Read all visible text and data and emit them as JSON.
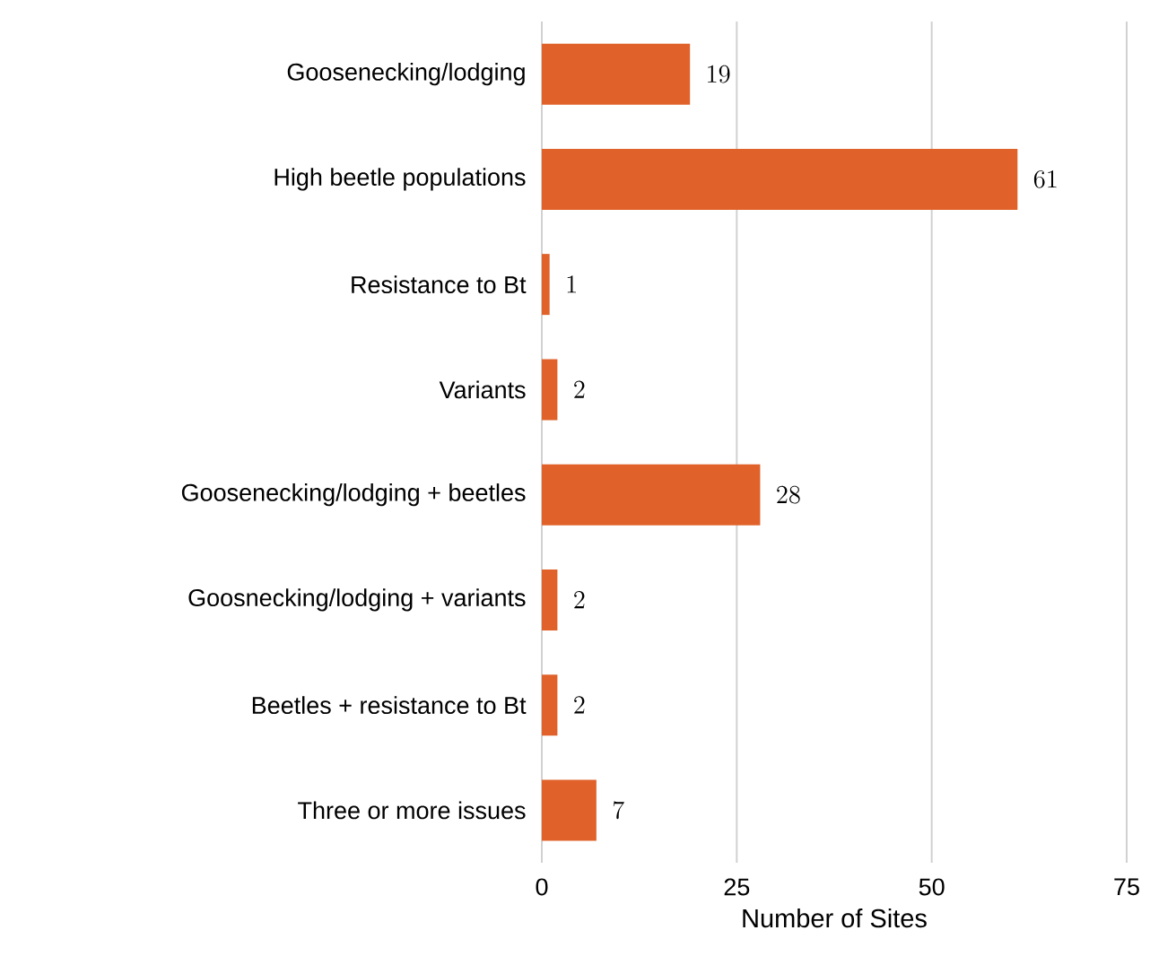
{
  "chart_data": {
    "type": "bar",
    "orientation": "horizontal",
    "xlabel": "Number of Sites",
    "categories": [
      "Goosenecking/lodging",
      "High beetle populations",
      "Resistance to Bt",
      "Variants",
      "Goosenecking/lodging + beetles",
      "Goosnecking/lodging + variants",
      "Beetles + resistance to Bt",
      "Three or more issues"
    ],
    "values": [
      19,
      61,
      1,
      2,
      28,
      2,
      2,
      7
    ],
    "color": "#e0622a",
    "xlim": [
      0,
      75
    ],
    "xticks": [
      0,
      25,
      50,
      75
    ],
    "grid": "x",
    "data_labels": true
  }
}
